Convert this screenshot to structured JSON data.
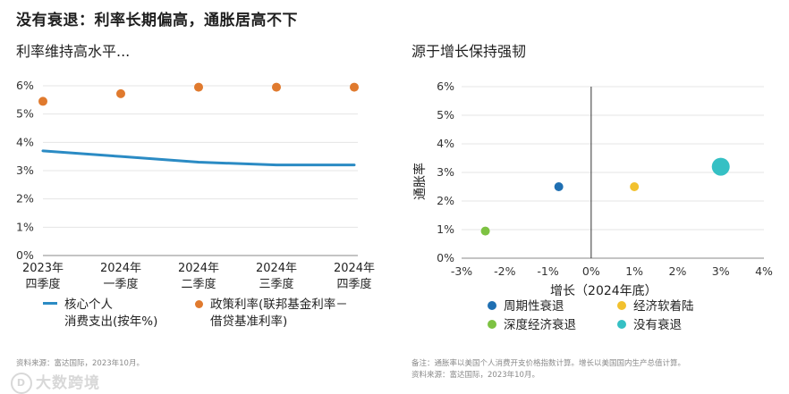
{
  "title": "没有衰退：利率长期偏高，通胀居高不下",
  "chart_data": [
    {
      "type": "line",
      "subtitle": "利率维持高水平...",
      "categories": [
        "2023年\n四季度",
        "2024年\n一季度",
        "2024年\n二季度",
        "2024年\n三季度",
        "2024年\n四季度"
      ],
      "yticks": [
        "0%",
        "1%",
        "2%",
        "3%",
        "4%",
        "5%",
        "6%"
      ],
      "ylim": [
        0,
        6
      ],
      "series": [
        {
          "name": "核心个人消费支出(按年%)",
          "legend_lines": [
            "核心个人",
            "消费支出(按年%)"
          ],
          "style": "line",
          "color": "#2b8bc4",
          "values": [
            3.7,
            3.5,
            3.3,
            3.2,
            3.2
          ]
        },
        {
          "name": "政策利率(联邦基金利率－借贷基准利率)",
          "legend_lines": [
            "政策利率(联邦基金利率－",
            "借贷基准利率)"
          ],
          "style": "dot",
          "color": "#e07a2e",
          "values": [
            5.45,
            5.72,
            5.95,
            5.95,
            5.95
          ]
        }
      ],
      "source": "资料来源：富达国际，2023年10月。"
    },
    {
      "type": "scatter",
      "subtitle": "源于增长保持强韧",
      "xlabel": "增长（2024年底）",
      "ylabel": "通胀率",
      "xticks": [
        "-3%",
        "-2%",
        "-1%",
        "0%",
        "1%",
        "2%",
        "3%",
        "4%"
      ],
      "xlim": [
        -3,
        4
      ],
      "yticks": [
        "0%",
        "1%",
        "2%",
        "3%",
        "4%",
        "5%",
        "6%"
      ],
      "ylim": [
        0,
        6
      ],
      "points": [
        {
          "name": "周期性衰退",
          "x": -0.75,
          "y": 2.5,
          "color": "#1f6fb2",
          "size": "small"
        },
        {
          "name": "经济软着陆",
          "x": 1.0,
          "y": 2.5,
          "color": "#f2c12e",
          "size": "small"
        },
        {
          "name": "深度经济衰退",
          "x": -2.45,
          "y": 0.95,
          "color": "#7dc242",
          "size": "small"
        },
        {
          "name": "没有衰退",
          "x": 3.0,
          "y": 3.2,
          "color": "#35c0c4",
          "size": "large"
        }
      ],
      "note_lines": [
        "备注：通胀率以美国个人消费开支价格指数计算。增长以美国国内生产总值计算。",
        "资料来源：富达国际，2023年10月。"
      ]
    }
  ],
  "watermark": "大数跨境",
  "watermark_mark": "D"
}
